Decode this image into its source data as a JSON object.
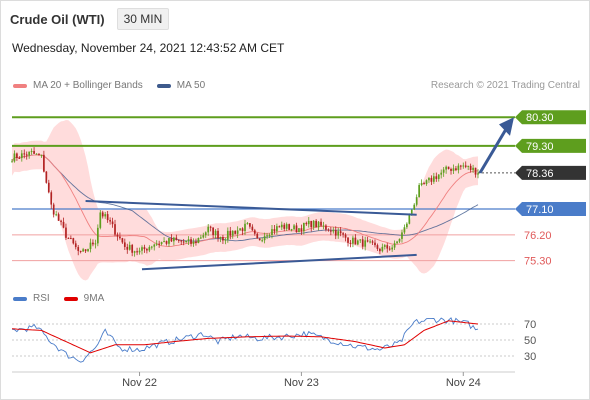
{
  "header": {
    "title": "Crude Oil (WTI)",
    "timeframe": "30 MIN",
    "datetime": "Wednesday, November 24, 2021 12:43:52 AM CET"
  },
  "legend": {
    "ma20": "MA 20 + Bollinger Bands",
    "ma50": "MA 50",
    "credit": "Research © 2021 Trading Central"
  },
  "rsi_legend": {
    "rsi": "RSI",
    "ma9": "9MA"
  },
  "colors": {
    "green": "#5e9e1e",
    "blue": "#4a7cc9",
    "red": "#e05a5a",
    "band": "#ffd0d0",
    "ma20": "#f08080",
    "ma50": "#3e5a8c",
    "up": "#5e9e1e",
    "down": "#b22222",
    "dark": "#333333",
    "trend": "#3a5a96"
  },
  "chart_data": {
    "type": "candlestick",
    "x_ticks": [
      "Nov 22",
      "Nov 23",
      "Nov 24"
    ],
    "ylim": [
      74.8,
      80.9
    ],
    "levels": [
      {
        "value": 80.3,
        "label": "80.30",
        "kind": "resistance",
        "color": "green"
      },
      {
        "value": 79.3,
        "label": "79.30",
        "kind": "resistance",
        "color": "green"
      },
      {
        "value": 78.36,
        "label": "78.36",
        "kind": "last",
        "color": "dark"
      },
      {
        "value": 77.1,
        "label": "77.10",
        "kind": "pivot",
        "color": "blue"
      },
      {
        "value": 76.2,
        "label": "76.20",
        "kind": "support",
        "color": "red"
      },
      {
        "value": 75.3,
        "label": "75.30",
        "kind": "support",
        "color": "red"
      }
    ],
    "price_keypoints": [
      [
        0,
        78.9
      ],
      [
        8,
        79.05
      ],
      [
        12,
        78.9
      ],
      [
        16,
        77.2
      ],
      [
        22,
        76.2
      ],
      [
        28,
        75.5
      ],
      [
        34,
        76.0
      ],
      [
        36,
        77.0
      ],
      [
        40,
        76.6
      ],
      [
        46,
        75.8
      ],
      [
        52,
        75.6
      ],
      [
        58,
        75.9
      ],
      [
        66,
        76.0
      ],
      [
        74,
        75.9
      ],
      [
        80,
        76.4
      ],
      [
        86,
        76.1
      ],
      [
        90,
        76.3
      ],
      [
        96,
        76.5
      ],
      [
        100,
        76.0
      ],
      [
        104,
        76.3
      ],
      [
        110,
        76.5
      ],
      [
        116,
        76.4
      ],
      [
        122,
        76.6
      ],
      [
        130,
        76.4
      ],
      [
        138,
        76.0
      ],
      [
        144,
        75.9
      ],
      [
        150,
        75.7
      ],
      [
        156,
        75.8
      ],
      [
        160,
        76.4
      ],
      [
        166,
        77.8
      ],
      [
        172,
        78.2
      ],
      [
        178,
        78.5
      ],
      [
        184,
        78.6
      ],
      [
        190,
        78.4
      ]
    ],
    "rsi": {
      "levels": [
        70,
        50,
        30
      ],
      "ylim": [
        15,
        85
      ],
      "rsi_keypoints": [
        [
          0,
          62
        ],
        [
          10,
          66
        ],
        [
          16,
          48
        ],
        [
          22,
          32
        ],
        [
          28,
          24
        ],
        [
          34,
          40
        ],
        [
          38,
          60
        ],
        [
          44,
          40
        ],
        [
          52,
          38
        ],
        [
          60,
          45
        ],
        [
          70,
          52
        ],
        [
          78,
          58
        ],
        [
          84,
          48
        ],
        [
          92,
          55
        ],
        [
          100,
          52
        ],
        [
          110,
          54
        ],
        [
          120,
          58
        ],
        [
          130,
          50
        ],
        [
          140,
          42
        ],
        [
          150,
          38
        ],
        [
          158,
          46
        ],
        [
          164,
          72
        ],
        [
          172,
          76
        ],
        [
          180,
          74
        ],
        [
          186,
          70
        ],
        [
          190,
          62
        ]
      ],
      "ma_keypoints": [
        [
          0,
          64
        ],
        [
          12,
          62
        ],
        [
          22,
          48
        ],
        [
          32,
          34
        ],
        [
          42,
          44
        ],
        [
          54,
          44
        ],
        [
          66,
          48
        ],
        [
          80,
          52
        ],
        [
          96,
          54
        ],
        [
          112,
          55
        ],
        [
          126,
          54
        ],
        [
          140,
          48
        ],
        [
          152,
          40
        ],
        [
          160,
          44
        ],
        [
          168,
          62
        ],
        [
          178,
          74
        ],
        [
          190,
          70
        ]
      ]
    }
  }
}
